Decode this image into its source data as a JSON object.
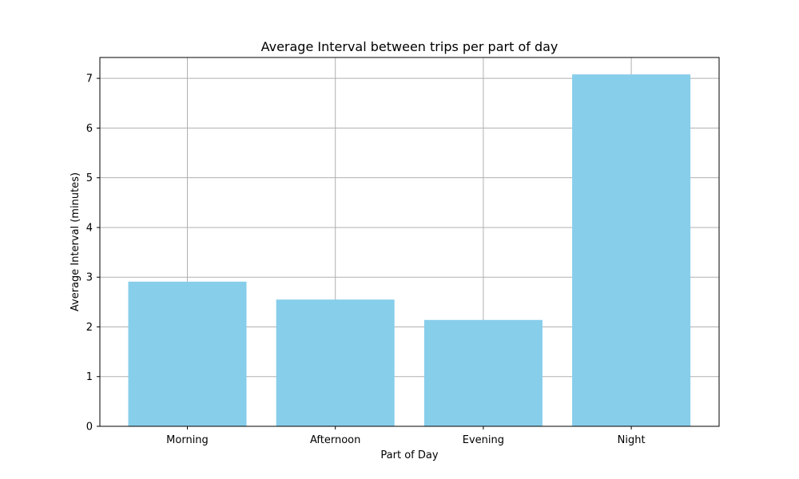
{
  "chart_data": {
    "type": "bar",
    "title": "Average Interval between trips per part of day",
    "xlabel": "Part of Day",
    "ylabel": "Average Interval (minutes)",
    "categories": [
      "Morning",
      "Afternoon",
      "Evening",
      "Night"
    ],
    "values": [
      2.91,
      2.55,
      2.14,
      7.08
    ],
    "ylim": [
      0,
      7.42
    ],
    "yticks": [
      "0",
      "1",
      "2",
      "3",
      "4",
      "5",
      "6",
      "7"
    ],
    "grid": true,
    "bar_color": "#87ceeb",
    "grid_color": "#b0b0b0"
  }
}
